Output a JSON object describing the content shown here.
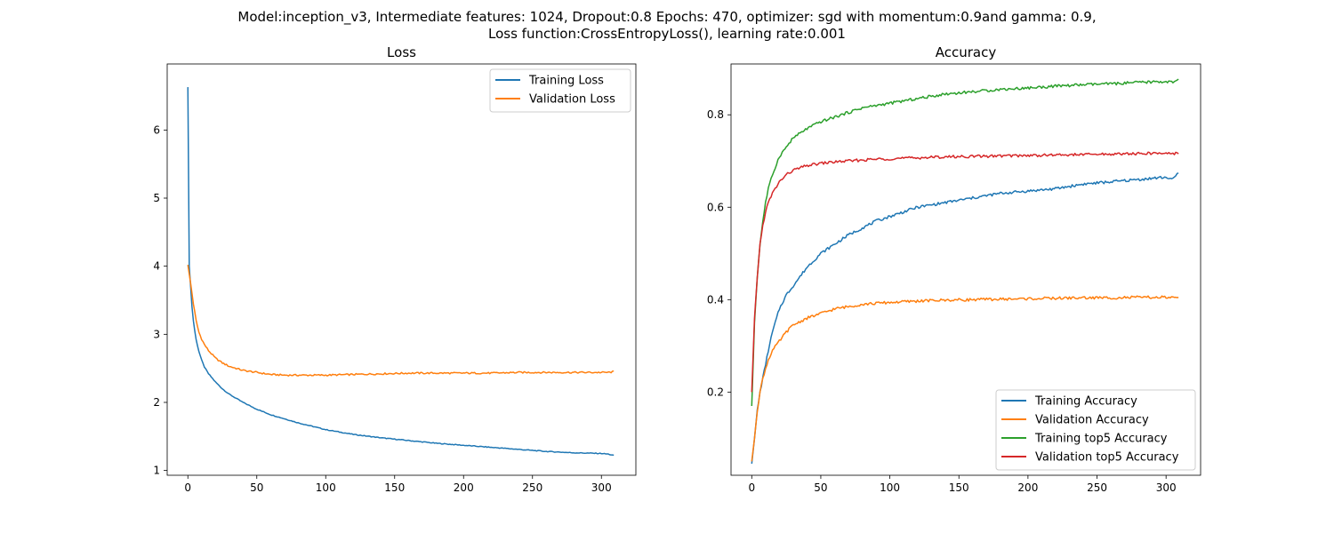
{
  "figure": {
    "suptitle_line1": "Model:inception_v3, Intermediate features: 1024, Dropout:0.8 Epochs: 470, optimizer: sgd with momentum:0.9and gamma: 0.9,",
    "suptitle_line2": "Loss function:CrossEntropyLoss(), learning rate:0.001"
  },
  "chart_data": [
    {
      "type": "line",
      "title": "Loss",
      "xlabel": "",
      "ylabel": "",
      "xlim": [
        -15,
        325
      ],
      "ylim": [
        0.93,
        6.97
      ],
      "xticks": [
        0,
        50,
        100,
        150,
        200,
        250,
        300
      ],
      "yticks": [
        1,
        2,
        3,
        4,
        5,
        6
      ],
      "grid": false,
      "legend_position": "top-right",
      "series": [
        {
          "name": "Training Loss",
          "color": "#1f77b4",
          "x": [
            0,
            1,
            2,
            3,
            4,
            5,
            6,
            8,
            10,
            12,
            15,
            20,
            25,
            30,
            40,
            50,
            60,
            70,
            80,
            90,
            100,
            120,
            140,
            160,
            180,
            200,
            220,
            240,
            260,
            280,
            300,
            305,
            309
          ],
          "y": [
            6.63,
            4.0,
            3.7,
            3.4,
            3.2,
            3.05,
            2.92,
            2.75,
            2.62,
            2.52,
            2.42,
            2.3,
            2.2,
            2.12,
            2.0,
            1.9,
            1.82,
            1.76,
            1.7,
            1.65,
            1.6,
            1.53,
            1.48,
            1.44,
            1.4,
            1.37,
            1.34,
            1.31,
            1.28,
            1.26,
            1.25,
            1.24,
            1.22
          ]
        },
        {
          "name": "Validation Loss",
          "color": "#ff7f0e",
          "x": [
            0,
            2,
            4,
            6,
            8,
            10,
            12,
            15,
            20,
            25,
            30,
            40,
            50,
            60,
            70,
            80,
            90,
            100,
            120,
            140,
            160,
            180,
            200,
            220,
            240,
            260,
            280,
            300,
            305,
            309
          ],
          "y": [
            4.02,
            3.75,
            3.45,
            3.2,
            3.03,
            2.93,
            2.85,
            2.76,
            2.65,
            2.58,
            2.53,
            2.47,
            2.44,
            2.41,
            2.4,
            2.4,
            2.4,
            2.4,
            2.41,
            2.42,
            2.43,
            2.43,
            2.43,
            2.43,
            2.44,
            2.44,
            2.44,
            2.44,
            2.44,
            2.45
          ]
        }
      ]
    },
    {
      "type": "line",
      "title": "Accuracy",
      "xlabel": "",
      "ylabel": "",
      "xlim": [
        -15,
        325
      ],
      "ylim": [
        0.02,
        0.91
      ],
      "xticks": [
        0,
        50,
        100,
        150,
        200,
        250,
        300
      ],
      "yticks": [
        0.2,
        0.4,
        0.6,
        0.8
      ],
      "grid": false,
      "legend_position": "bottom-right",
      "series": [
        {
          "name": "Training Accuracy",
          "color": "#1f77b4",
          "x": [
            0,
            2,
            4,
            6,
            8,
            10,
            12,
            15,
            20,
            25,
            30,
            40,
            50,
            60,
            70,
            80,
            90,
            100,
            120,
            140,
            160,
            180,
            200,
            220,
            240,
            260,
            280,
            300,
            305,
            309
          ],
          "y": [
            0.045,
            0.1,
            0.16,
            0.2,
            0.23,
            0.26,
            0.29,
            0.33,
            0.38,
            0.41,
            0.43,
            0.47,
            0.5,
            0.52,
            0.54,
            0.555,
            0.57,
            0.58,
            0.6,
            0.61,
            0.62,
            0.63,
            0.635,
            0.64,
            0.65,
            0.655,
            0.66,
            0.665,
            0.66,
            0.675
          ]
        },
        {
          "name": "Validation Accuracy",
          "color": "#ff7f0e",
          "x": [
            0,
            2,
            4,
            6,
            8,
            10,
            12,
            15,
            20,
            25,
            30,
            40,
            50,
            60,
            70,
            80,
            90,
            100,
            120,
            140,
            160,
            180,
            200,
            220,
            240,
            260,
            280,
            300,
            305,
            309
          ],
          "y": [
            0.05,
            0.1,
            0.16,
            0.2,
            0.23,
            0.25,
            0.27,
            0.29,
            0.31,
            0.33,
            0.345,
            0.36,
            0.37,
            0.38,
            0.385,
            0.39,
            0.392,
            0.394,
            0.397,
            0.399,
            0.4,
            0.401,
            0.402,
            0.403,
            0.404,
            0.404,
            0.405,
            0.405,
            0.404,
            0.402
          ]
        },
        {
          "name": "Training top5 Accuracy",
          "color": "#2ca02c",
          "x": [
            0,
            2,
            4,
            6,
            8,
            10,
            12,
            15,
            20,
            25,
            30,
            40,
            50,
            60,
            70,
            80,
            90,
            100,
            120,
            140,
            160,
            180,
            200,
            220,
            240,
            260,
            280,
            300,
            305,
            309
          ],
          "y": [
            0.17,
            0.35,
            0.45,
            0.52,
            0.57,
            0.61,
            0.64,
            0.67,
            0.71,
            0.73,
            0.75,
            0.77,
            0.785,
            0.795,
            0.805,
            0.815,
            0.82,
            0.825,
            0.835,
            0.845,
            0.85,
            0.855,
            0.858,
            0.862,
            0.865,
            0.867,
            0.87,
            0.872,
            0.87,
            0.875
          ]
        },
        {
          "name": "Validation top5 Accuracy",
          "color": "#d62728",
          "x": [
            0,
            2,
            4,
            6,
            8,
            10,
            12,
            15,
            20,
            25,
            30,
            40,
            50,
            60,
            70,
            80,
            90,
            100,
            120,
            140,
            160,
            180,
            200,
            220,
            240,
            260,
            280,
            300,
            305,
            309
          ],
          "y": [
            0.2,
            0.36,
            0.45,
            0.52,
            0.56,
            0.59,
            0.61,
            0.63,
            0.655,
            0.67,
            0.68,
            0.69,
            0.695,
            0.698,
            0.7,
            0.702,
            0.704,
            0.705,
            0.707,
            0.709,
            0.71,
            0.711,
            0.712,
            0.713,
            0.714,
            0.715,
            0.716,
            0.717,
            0.716,
            0.718
          ]
        }
      ]
    }
  ]
}
